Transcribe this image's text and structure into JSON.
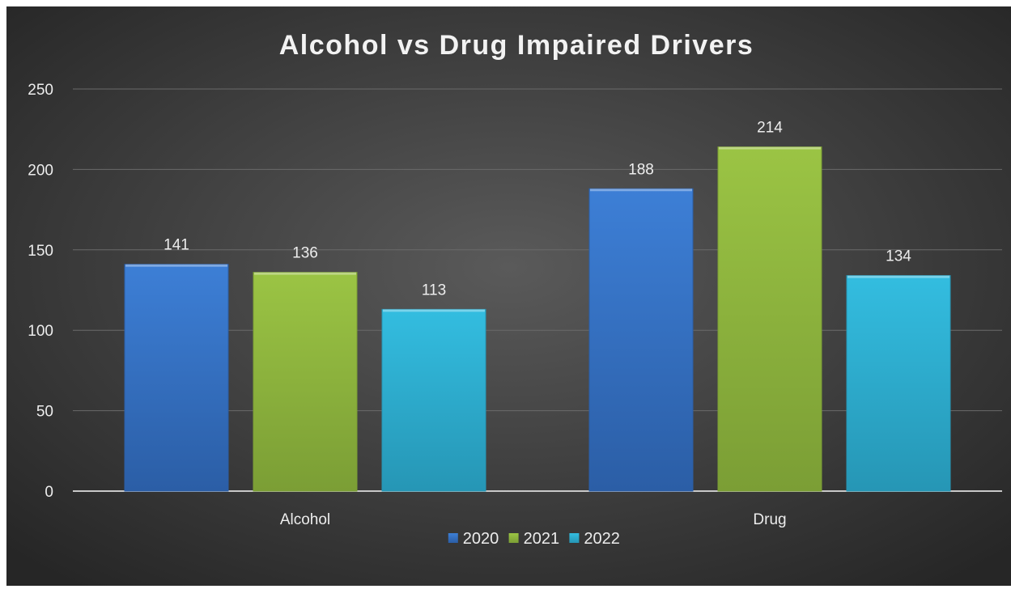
{
  "chart_data": {
    "type": "bar",
    "title": "Alcohol vs Drug Impaired Drivers",
    "categories": [
      "Alcohol",
      "Drug"
    ],
    "series": [
      {
        "name": "2020",
        "values": [
          141,
          188
        ],
        "color": "#3d7fd6",
        "color_dark": "#2b5ea6"
      },
      {
        "name": "2021",
        "values": [
          136,
          214
        ],
        "color": "#9bc444",
        "color_dark": "#7b9e35"
      },
      {
        "name": "2022",
        "values": [
          113,
          134
        ],
        "color": "#33bde0",
        "color_dark": "#2696b5"
      }
    ],
    "ylim": [
      0,
      250
    ],
    "yticks": [
      0,
      50,
      100,
      150,
      200,
      250
    ],
    "grid": true,
    "legend_position": "bottom",
    "background_color": "#404040",
    "text_color": "#ffffff"
  }
}
